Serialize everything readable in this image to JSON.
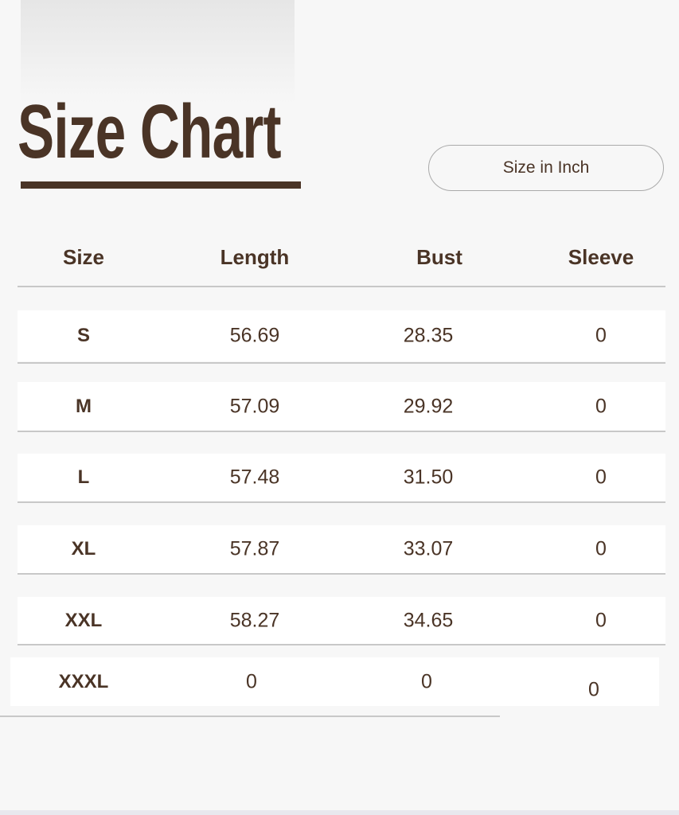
{
  "title": "Size Chart",
  "unit_label": "Size in Inch",
  "colors": {
    "text": "#4a3426",
    "divider": "#c8c8c8",
    "row_bg": "#ffffff",
    "page_bg": "#f7f7f7"
  },
  "headers": [
    "Size",
    "Length",
    "Bust",
    "Sleeve"
  ],
  "rows": [
    [
      "S",
      "56.69",
      "28.35",
      "0"
    ],
    [
      "M",
      "57.09",
      "29.92",
      "0"
    ],
    [
      "L",
      "57.48",
      "31.50",
      "0"
    ],
    [
      "XL",
      "57.87",
      "33.07",
      "0"
    ],
    [
      "XXL",
      "58.27",
      "34.65",
      "0"
    ],
    [
      "XXXL",
      "0",
      "0",
      "0"
    ]
  ]
}
